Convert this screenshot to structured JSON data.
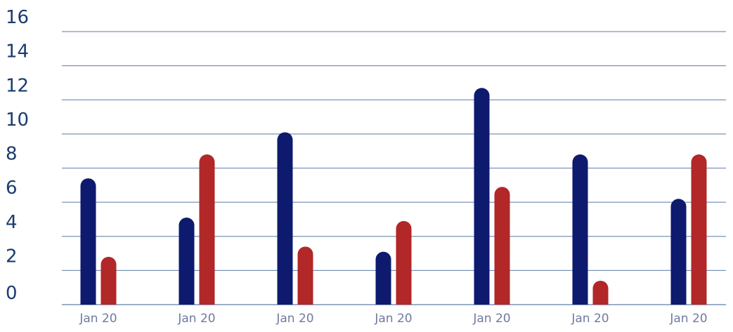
{
  "chart_data": {
    "type": "bar",
    "title": "",
    "xlabel": "",
    "ylabel": "",
    "categories": [
      "Jan 20",
      "Jan 20",
      "Jan 20",
      "Jan 20",
      "Jan 20",
      "Jan 20",
      "Jan 20"
    ],
    "series": [
      {
        "color": "#0d1a6e",
        "values": [
          7.4,
          5.1,
          10.1,
          3.1,
          12.7,
          8.8,
          6.2
        ]
      },
      {
        "color": "#b22727",
        "values": [
          2.8,
          8.8,
          3.4,
          4.9,
          6.9,
          1.4,
          8.8
        ]
      }
    ],
    "ylim": [
      0,
      16
    ],
    "yticks": [
      "0",
      "2",
      "4",
      "6",
      "8",
      "10",
      "12",
      "14",
      "16"
    ],
    "grid": true,
    "gridline_color": "#7a93b8",
    "legend": "none"
  }
}
